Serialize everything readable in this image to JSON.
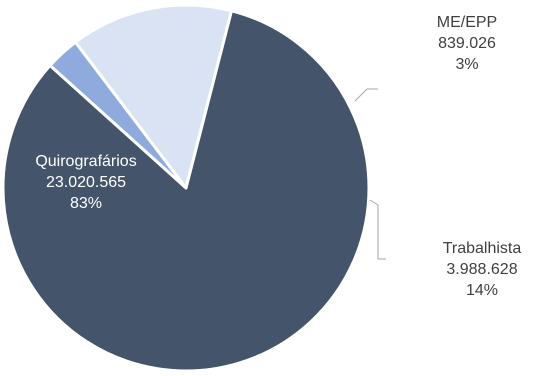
{
  "chart_data": {
    "type": "pie",
    "slices": [
      {
        "label": "Quirografários",
        "value": 23020565,
        "value_text": "23.020.565",
        "percent_text": "83%",
        "color": "#44546a",
        "label_color": "#ffffff"
      },
      {
        "label": "ME/EPP",
        "value": 839026,
        "value_text": "839.026",
        "percent_text": "3%",
        "color": "#8faadc",
        "label_color": "#404040"
      },
      {
        "label": "Trabalhista",
        "value": 3988628,
        "value_text": "3.988.628",
        "percent_text": "14%",
        "color": "#dae3f3",
        "label_color": "#404040"
      }
    ],
    "slice_border_color": "#ffffff",
    "leader_line_color": "#a6a6a6"
  }
}
